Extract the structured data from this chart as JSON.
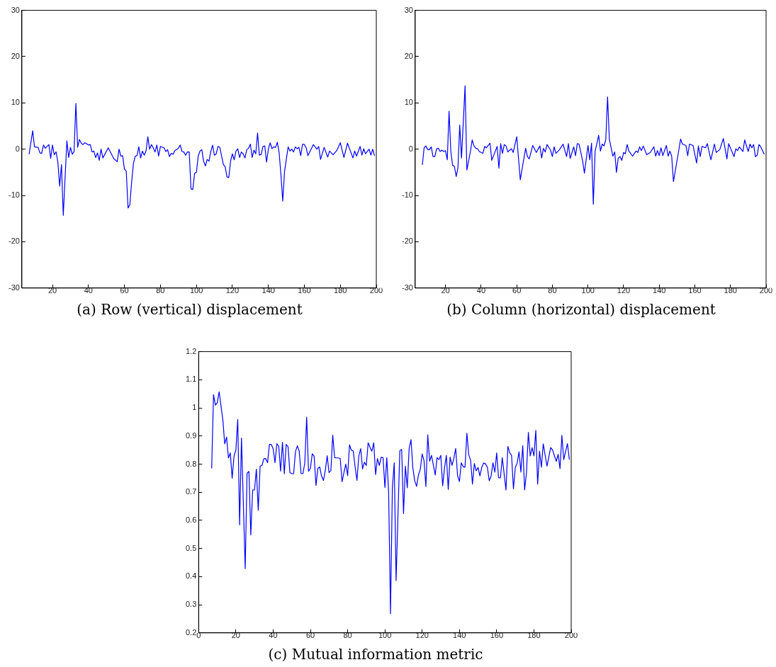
{
  "chart_data": [
    {
      "type": "line",
      "title": "(a) Row (vertical) displacement",
      "color": "#0000ff",
      "xlim": [
        3,
        200
      ],
      "xticks": [
        20,
        40,
        60,
        80,
        100,
        120,
        140,
        160,
        180,
        200
      ],
      "ylim": [
        -30,
        30
      ],
      "yticks": [
        -30,
        -20,
        -10,
        0,
        10,
        20,
        30
      ],
      "x": [
        7,
        9,
        10,
        12,
        13,
        14,
        15,
        16,
        18,
        19,
        20,
        21,
        22,
        23,
        24,
        25,
        26,
        28,
        29,
        30,
        31,
        32,
        33,
        34,
        35,
        36,
        37,
        38,
        40,
        41,
        42,
        43,
        44,
        45,
        46,
        47,
        48,
        51,
        54,
        56,
        57,
        58,
        59,
        60,
        61,
        62,
        63,
        64,
        65,
        66,
        67,
        68,
        69,
        70,
        71,
        72,
        73,
        74,
        75,
        76,
        77,
        78,
        79,
        80,
        82,
        83,
        84,
        85,
        86,
        87,
        88,
        90,
        91,
        92,
        93,
        94,
        95,
        96,
        97,
        98,
        99,
        100,
        101,
        102,
        103,
        104,
        105,
        106,
        107,
        108,
        109,
        110,
        111,
        112,
        113,
        115,
        116,
        117,
        118,
        119,
        120,
        121,
        122,
        123,
        124,
        125,
        126,
        127,
        128,
        129,
        130,
        131,
        132,
        133,
        134,
        135,
        136,
        137,
        138,
        139,
        140,
        141,
        142,
        143,
        144,
        145,
        146,
        147,
        148,
        149,
        151,
        152,
        153,
        154,
        155,
        156,
        157,
        158,
        159,
        160,
        161,
        162,
        165,
        167,
        168,
        169,
        171,
        173,
        174,
        176,
        178,
        180,
        182,
        184,
        187,
        188,
        189,
        191,
        192,
        193,
        194,
        196,
        197,
        198,
        199
      ],
      "values": [
        -1.1,
        4.0,
        0.5,
        0.4,
        -0.8,
        -0.9,
        0.9,
        0.2,
        1.0,
        -2.0,
        0.9,
        -1.2,
        -0.6,
        -2.8,
        -8.0,
        -3.3,
        -14.3,
        1.8,
        -1.8,
        0.4,
        -1.1,
        -0.5,
        9.9,
        0.4,
        2.1,
        1.3,
        1.0,
        1.4,
        0.9,
        1.0,
        -0.6,
        -0.4,
        -1.8,
        -0.8,
        -2.4,
        0,
        -1.9,
        0.3,
        -2.0,
        -2.7,
        0,
        -1.5,
        -1.4,
        -4.3,
        -4.7,
        -12.7,
        -12.0,
        -7.1,
        -3.1,
        -1.5,
        -1.4,
        0.5,
        -1.9,
        -0.4,
        -1.3,
        -0.4,
        2.7,
        0,
        1.0,
        0.3,
        -0.6,
        0.9,
        -1.5,
        0.6,
        0.3,
        -0.5,
        -0.1,
        -1.6,
        -0.9,
        -1.1,
        -0.3,
        0.2,
        0.9,
        -0.5,
        -0.6,
        -1.3,
        -0.6,
        -0.6,
        -8.6,
        -8.7,
        -5.2,
        -5.0,
        -1.5,
        -0.4,
        -0.1,
        -2.6,
        -3.6,
        -2.2,
        -2.6,
        -0.5,
        0.9,
        -1.3,
        -1.0,
        0.6,
        0.4,
        -3.3,
        -3.8,
        -6.0,
        -6.1,
        -2.6,
        -1.0,
        -2.3,
        -0.4,
        0.1,
        -1.8,
        -0.6,
        -1.0,
        -1.9,
        -0.1,
        0.2,
        1.1,
        -1.8,
        -0.2,
        -1.0,
        3.5,
        -1.3,
        -1.1,
        0.6,
        0.7,
        -2.8,
        0,
        1.4,
        0.1,
        0.5,
        0.4,
        1.5,
        -0.8,
        -5.6,
        -11.2,
        -4.8,
        0.5,
        -0.4,
        0,
        -0.6,
        0.5,
        0.1,
        0.4,
        -1.4,
        1.1,
        1.0,
        0.3,
        -1.4,
        1.0,
        0,
        0.6,
        -2.2,
        0.4,
        -1.7,
        -0.4,
        -1.2,
        -0.3,
        1.4,
        -1.8,
        1.3,
        -1.9,
        -0.4,
        -1.5,
        0.6,
        -1.3,
        0.1,
        -1.0,
        0,
        -1.3,
        0,
        -1.4
      ]
    },
    {
      "type": "line",
      "title": "(b) Column (horizontal) displacement",
      "color": "#0000ff",
      "xlim": [
        3,
        200
      ],
      "xticks": [
        20,
        40,
        60,
        80,
        100,
        120,
        140,
        160,
        180,
        200
      ],
      "ylim": [
        -30,
        30
      ],
      "yticks": [
        -30,
        -20,
        -10,
        0,
        10,
        20,
        30
      ],
      "x": [
        7,
        8,
        9,
        10,
        11,
        12,
        13,
        14,
        15,
        16,
        17,
        18,
        19,
        20,
        21,
        22,
        23,
        24,
        25,
        26,
        27,
        28,
        29,
        31,
        32,
        34,
        35,
        36,
        37,
        38,
        39,
        41,
        42,
        43,
        45,
        46,
        49,
        50,
        51,
        52,
        53,
        54,
        55,
        57,
        58,
        60,
        62,
        63,
        65,
        66,
        67,
        69,
        71,
        73,
        74,
        75,
        76,
        77,
        79,
        80,
        81,
        82,
        84,
        86,
        88,
        89,
        90,
        92,
        93,
        94,
        95,
        97,
        98,
        100,
        101,
        102,
        103,
        104,
        106,
        107,
        108,
        109,
        110,
        111,
        112,
        114,
        115,
        116,
        117,
        118,
        119,
        120,
        121,
        122,
        123,
        125,
        127,
        128,
        129,
        130,
        131,
        133,
        135,
        137,
        138,
        139,
        140,
        141,
        142,
        144,
        145,
        146,
        147,
        148,
        151,
        152,
        153,
        155,
        156,
        157,
        159,
        161,
        162,
        163,
        164,
        166,
        167,
        169,
        171,
        172,
        174,
        176,
        178,
        179,
        182,
        183,
        184,
        185,
        187,
        188,
        190,
        191,
        192,
        193,
        194,
        195,
        196,
        197,
        199
      ],
      "values": [
        -3.4,
        0.3,
        0.7,
        -0.1,
        -0.1,
        0.5,
        -1.6,
        -1.6,
        0.1,
        0.2,
        -0.5,
        -0.2,
        -0.5,
        -0.3,
        -2.3,
        8.2,
        -0.5,
        -3.5,
        -3.7,
        -5.9,
        -4.0,
        5.2,
        -1.9,
        13.7,
        -4.5,
        -0.5,
        2.0,
        0.7,
        0.2,
        0.1,
        -0.5,
        -0.9,
        0.6,
        0.3,
        1.3,
        -2.4,
        0.6,
        -4.1,
        1.2,
        -0.9,
        1.0,
        0.7,
        -0.6,
        0.1,
        -0.7,
        2.7,
        -6.6,
        -4.3,
        0.2,
        -1.6,
        -2.1,
        0.8,
        -0.7,
        0.7,
        -1.9,
        0.2,
        -0.6,
        1.0,
        -0.2,
        -1.6,
        0.5,
        -0.9,
        -0.1,
        1.1,
        -1.6,
        1.2,
        -2.0,
        0.5,
        -1.4,
        1.2,
        1.1,
        -2.5,
        -5.2,
        0.8,
        -2.3,
        1.3,
        -11.9,
        -0.5,
        3.0,
        -0.4,
        1.1,
        0.7,
        2.1,
        11.3,
        2.1,
        -1.5,
        -0.6,
        -5.0,
        -1.9,
        -1.6,
        -2.4,
        -0.7,
        -1.0,
        1.0,
        -0.4,
        -1.5,
        -0.4,
        -0.7,
        0.5,
        -0.3,
        0.7,
        -1.2,
        -0.7,
        0.5,
        -1.5,
        -0.3,
        -1.4,
        0.3,
        -1.4,
        0.8,
        -1.5,
        -0.4,
        -1.5,
        -7.0,
        -0.2,
        2.2,
        1.1,
        0.8,
        -1.4,
        1.1,
        0.8,
        -3.0,
        0.7,
        -1.6,
        0.6,
        0.3,
        1.2,
        -2.3,
        1.1,
        -0.7,
        -0.1,
        2.3,
        -2.1,
        1.2,
        -1.6,
        0.1,
        -0.3,
        0.5,
        -0.5,
        2.0,
        -0.5,
        1.1,
        0.3,
        1.0,
        -1.6,
        -1.3,
        1.0,
        0.5,
        -1.1
      ]
    },
    {
      "type": "line",
      "title": "(c) Mutual information metric",
      "color": "#0000ff",
      "xlim": [
        0,
        200
      ],
      "xticks": [
        0,
        20,
        40,
        60,
        80,
        100,
        120,
        140,
        160,
        180,
        200
      ],
      "ylim": [
        0.2,
        1.2
      ],
      "yticks": [
        0.2,
        0.3,
        0.4,
        0.5,
        0.6,
        0.7,
        0.8,
        0.9,
        1,
        1.1,
        1.2
      ],
      "x": [
        7,
        8,
        9,
        10,
        11,
        13,
        14,
        15,
        16,
        17,
        18,
        19,
        20,
        21,
        22,
        23,
        25,
        26,
        27,
        28,
        29,
        30,
        31,
        32,
        33,
        34,
        35,
        36,
        37,
        38,
        39,
        40,
        41,
        42,
        43,
        44,
        45,
        46,
        47,
        48,
        49,
        50,
        51,
        52,
        53,
        54,
        55,
        56,
        57,
        58,
        59,
        60,
        61,
        62,
        63,
        64,
        65,
        66,
        67,
        68,
        69,
        70,
        71,
        72,
        73,
        74,
        75,
        76,
        77,
        78,
        79,
        80,
        81,
        82,
        83,
        84,
        85,
        86,
        87,
        88,
        89,
        90,
        91,
        92,
        93,
        94,
        95,
        96,
        97,
        98,
        99,
        100,
        101,
        102,
        103,
        104,
        105,
        106,
        108,
        109,
        110,
        111,
        112,
        113,
        114,
        115,
        116,
        117,
        118,
        119,
        120,
        121,
        122,
        123,
        124,
        125,
        126,
        127,
        128,
        129,
        130,
        131,
        132,
        133,
        134,
        135,
        136,
        137,
        138,
        139,
        140,
        141,
        142,
        143,
        144,
        145,
        146,
        147,
        148,
        149,
        150,
        151,
        152,
        153,
        154,
        155,
        156,
        157,
        158,
        159,
        160,
        161,
        162,
        163,
        165,
        166,
        167,
        168,
        169,
        170,
        171,
        172,
        173,
        174,
        175,
        176,
        177,
        178,
        179,
        180,
        181,
        182,
        183,
        184,
        185,
        187,
        189,
        190,
        192,
        193,
        194,
        195,
        196,
        198,
        199
      ],
      "values": [
        0.785,
        1.047,
        1.01,
        1.018,
        1.057,
        0.957,
        0.872,
        0.896,
        0.822,
        0.84,
        0.75,
        0.829,
        0.85,
        0.959,
        0.584,
        0.893,
        0.428,
        0.768,
        0.774,
        0.548,
        0.708,
        0.708,
        0.782,
        0.636,
        0.793,
        0.795,
        0.819,
        0.82,
        0.805,
        0.87,
        0.87,
        0.855,
        0.805,
        0.873,
        0.863,
        0.775,
        0.878,
        0.766,
        0.87,
        0.862,
        0.77,
        0.766,
        0.766,
        0.845,
        0.865,
        0.846,
        0.766,
        0.766,
        0.805,
        0.967,
        0.774,
        0.785,
        0.837,
        0.828,
        0.724,
        0.785,
        0.79,
        0.757,
        0.742,
        0.778,
        0.83,
        0.77,
        0.777,
        0.903,
        0.823,
        0.822,
        0.822,
        0.82,
        0.737,
        0.77,
        0.8,
        0.759,
        0.869,
        0.849,
        0.847,
        0.79,
        0.742,
        0.83,
        0.855,
        0.783,
        0.807,
        0.795,
        0.876,
        0.86,
        0.846,
        0.876,
        0.763,
        0.82,
        0.795,
        0.825,
        0.823,
        0.717,
        0.823,
        0.701,
        0.268,
        0.714,
        0.805,
        0.386,
        0.848,
        0.852,
        0.624,
        0.793,
        0.716,
        0.855,
        0.887,
        0.787,
        0.741,
        0.721,
        0.761,
        0.782,
        0.836,
        0.812,
        0.72,
        0.904,
        0.81,
        0.831,
        0.797,
        0.761,
        0.823,
        0.816,
        0.831,
        0.723,
        0.787,
        0.831,
        0.71,
        0.825,
        0.795,
        0.82,
        0.856,
        0.759,
        0.738,
        0.805,
        0.791,
        0.789,
        0.91,
        0.833,
        0.814,
        0.729,
        0.802,
        0.776,
        0.788,
        0.758,
        0.789,
        0.804,
        0.801,
        0.789,
        0.741,
        0.757,
        0.805,
        0.771,
        0.84,
        0.752,
        0.751,
        0.823,
        0.708,
        0.863,
        0.84,
        0.831,
        0.712,
        0.788,
        0.804,
        0.844,
        0.772,
        0.866,
        0.708,
        0.77,
        0.913,
        0.829,
        0.859,
        0.829,
        0.92,
        0.729,
        0.846,
        0.789,
        0.872,
        0.793,
        0.859,
        0.85,
        0.81,
        0.835,
        0.784,
        0.902,
        0.816,
        0.873,
        0.816
      ]
    }
  ]
}
